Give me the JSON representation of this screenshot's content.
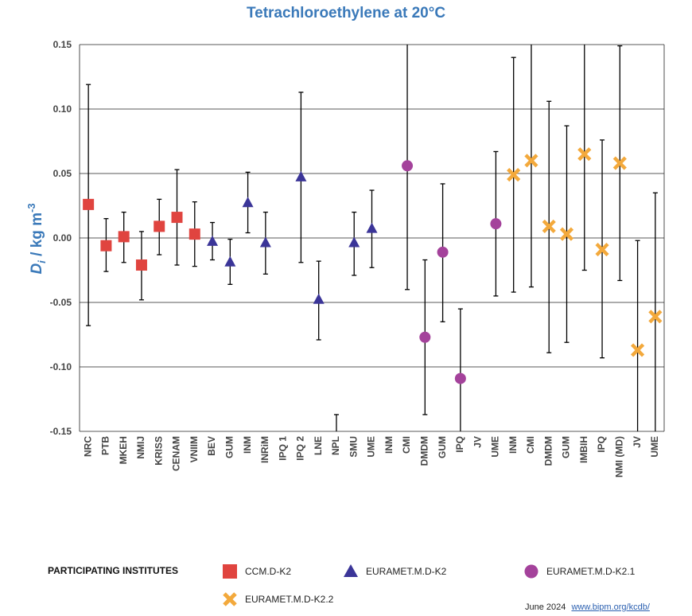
{
  "chart_data": {
    "type": "scatter",
    "title": "Tetrachloroethylene at 20°C",
    "ylabel": "D_i / kg m^-3",
    "ylabel_parts": {
      "d": "D",
      "i": "i",
      "unit": " / kg m",
      "exp": "-3"
    },
    "ylim": [
      -0.15,
      0.15
    ],
    "yticks": [
      -0.15,
      -0.1,
      -0.05,
      0.0,
      0.05,
      0.1,
      0.15
    ],
    "ytick_labels": [
      "-0.15",
      "-0.10",
      "-0.05",
      "0.00",
      "0.05",
      "0.10",
      "0.15"
    ],
    "grid": true,
    "categories": [
      "NRC",
      "PTB",
      "MKEH",
      "NMIJ",
      "KRISS",
      "CENAM",
      "VNIIM",
      "BEV",
      "GUM",
      "INM",
      "INRiM",
      "IPQ 1",
      "IPQ 2",
      "LNE",
      "NPL",
      "SMU",
      "UME",
      "INM",
      "CMI",
      "DMDM",
      "GUM",
      "IPQ",
      "JV",
      "UME",
      "INM",
      "CMI",
      "DMDM",
      "GUM",
      "IMBIH",
      "IPQ",
      "NMI (MD)",
      "JV",
      "UME"
    ],
    "series": [
      {
        "name": "CCM.D-K2",
        "marker": "square",
        "color": "#e0443f",
        "points": [
          {
            "i": 0,
            "y": 0.026,
            "lo": -0.068,
            "hi": 0.119
          },
          {
            "i": 1,
            "y": -0.006,
            "lo": -0.026,
            "hi": 0.015
          },
          {
            "i": 2,
            "y": 0.001,
            "lo": -0.019,
            "hi": 0.02
          },
          {
            "i": 3,
            "y": -0.021,
            "lo": -0.048,
            "hi": 0.005
          },
          {
            "i": 4,
            "y": 0.009,
            "lo": -0.013,
            "hi": 0.03
          },
          {
            "i": 5,
            "y": 0.016,
            "lo": -0.021,
            "hi": 0.053
          },
          {
            "i": 6,
            "y": 0.003,
            "lo": -0.022,
            "hi": 0.028
          }
        ]
      },
      {
        "name": "EURAMET.M.D-K2",
        "marker": "triangle",
        "color": "#3b3598",
        "points": [
          {
            "i": 7,
            "y": -0.003,
            "lo": -0.017,
            "hi": 0.012
          },
          {
            "i": 8,
            "y": -0.019,
            "lo": -0.036,
            "hi": -0.001
          },
          {
            "i": 9,
            "y": 0.027,
            "lo": 0.004,
            "hi": 0.051
          },
          {
            "i": 10,
            "y": -0.004,
            "lo": -0.028,
            "hi": 0.02
          },
          {
            "i": 12,
            "y": 0.047,
            "lo": -0.019,
            "hi": 0.113
          },
          {
            "i": 13,
            "y": -0.048,
            "lo": -0.079,
            "hi": -0.018
          },
          {
            "i": 14,
            "y": null,
            "lo": -0.15,
            "hi": -0.137
          },
          {
            "i": 15,
            "y": -0.004,
            "lo": -0.029,
            "hi": 0.02
          },
          {
            "i": 16,
            "y": 0.007,
            "lo": -0.023,
            "hi": 0.037
          }
        ]
      },
      {
        "name": "EURAMET.M.D-K2.1",
        "marker": "circle",
        "color": "#a4429b",
        "points": [
          {
            "i": 18,
            "y": 0.056,
            "lo": -0.04,
            "hi": 0.15
          },
          {
            "i": 19,
            "y": -0.077,
            "lo": -0.137,
            "hi": -0.017
          },
          {
            "i": 20,
            "y": -0.011,
            "lo": -0.065,
            "hi": 0.042
          },
          {
            "i": 21,
            "y": -0.109,
            "lo": -0.15,
            "hi": -0.055
          },
          {
            "i": 23,
            "y": 0.011,
            "lo": -0.045,
            "hi": 0.067
          }
        ]
      },
      {
        "name": "EURAMET.M.D-K2.2",
        "marker": "x",
        "color": "#f3a93c",
        "points": [
          {
            "i": 24,
            "y": 0.049,
            "lo": -0.042,
            "hi": 0.14
          },
          {
            "i": 25,
            "y": 0.06,
            "lo": -0.038,
            "hi": 0.15
          },
          {
            "i": 26,
            "y": 0.009,
            "lo": -0.089,
            "hi": 0.106
          },
          {
            "i": 27,
            "y": 0.003,
            "lo": -0.081,
            "hi": 0.087
          },
          {
            "i": 28,
            "y": 0.065,
            "lo": -0.025,
            "hi": 0.15
          },
          {
            "i": 29,
            "y": -0.009,
            "lo": -0.093,
            "hi": 0.076
          },
          {
            "i": 30,
            "y": 0.058,
            "lo": -0.033,
            "hi": 0.149
          },
          {
            "i": 31,
            "y": -0.087,
            "lo": -0.15,
            "hi": -0.002
          },
          {
            "i": 32,
            "y": -0.061,
            "lo": -0.15,
            "hi": 0.035
          }
        ]
      }
    ],
    "legend_title": "PARTICIPATING INSTITUTES"
  },
  "footer": {
    "date": "June 2024",
    "link": "www.bipm.org/kcdb/"
  }
}
